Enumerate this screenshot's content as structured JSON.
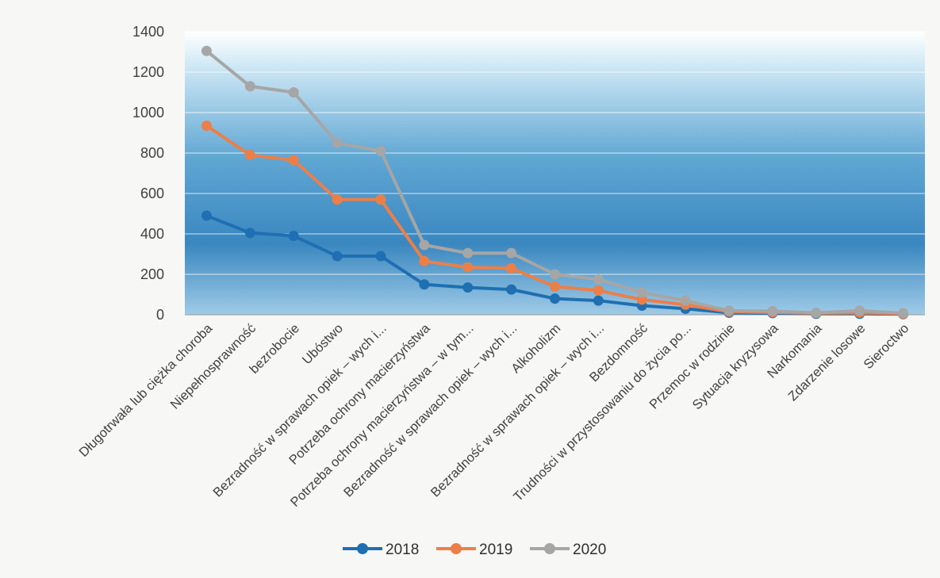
{
  "chart_data": {
    "type": "line",
    "title": "",
    "xlabel": "",
    "ylabel": "",
    "ylim": [
      0,
      1400
    ],
    "yticks": [
      0,
      200,
      400,
      600,
      800,
      1000,
      1200,
      1400
    ],
    "grid": true,
    "legend_position": "bottom",
    "categories": [
      "Długotrwała lub ciężka choroba",
      "Niepełnosprawność",
      "bezrobocie",
      "Ubóstwo",
      "Bezradność w sprawach opiek – wych i...",
      "Potrzeba ochrony macierzyństwa",
      "Potrzeba ochrony macierzyństwa – w tym...",
      "Bezradność w sprawach opiek – wych i...",
      "Alkoholizm",
      "Bezradność w sprawach opiek – wych i...",
      "Bezdomność",
      "Trudności w przystosowaniu do życia po...",
      "Przemoc w rodzinie",
      "Sytuacja kryzysowa",
      "Narkomania",
      "Zdarzenie losowe",
      "Sieroctwo"
    ],
    "series": [
      {
        "name": "2018",
        "color": "#1f6fb2",
        "values": [
          490,
          405,
          390,
          290,
          290,
          150,
          135,
          125,
          80,
          70,
          45,
          30,
          10,
          8,
          5,
          5,
          3
        ]
      },
      {
        "name": "2019",
        "color": "#ec7f48",
        "values": [
          935,
          790,
          765,
          570,
          570,
          265,
          235,
          230,
          140,
          120,
          75,
          50,
          15,
          12,
          8,
          10,
          5
        ]
      },
      {
        "name": "2020",
        "color": "#a6a6a6",
        "values": [
          1305,
          1130,
          1100,
          850,
          810,
          345,
          305,
          305,
          200,
          175,
          110,
          70,
          20,
          18,
          10,
          20,
          8
        ]
      }
    ]
  }
}
